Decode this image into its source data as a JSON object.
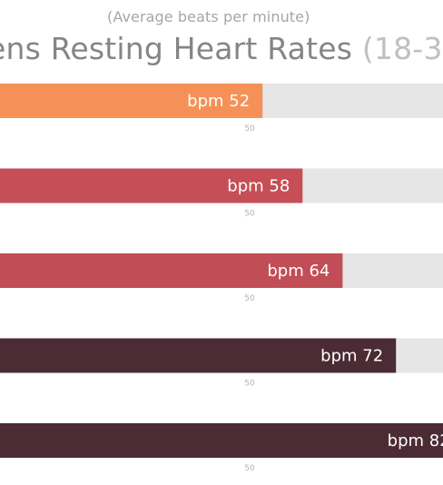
{
  "chart_data": {
    "type": "bar",
    "orientation": "horizontal",
    "subtitle": "(Average beats per minute)",
    "title": "ens Resting Heart Rates",
    "title_range": "(18-3",
    "value_prefix": "bpm",
    "tick_label": "50",
    "categories": [
      "",
      "",
      "",
      "",
      ""
    ],
    "values": [
      52,
      58,
      64,
      72,
      82
    ],
    "colors": [
      "#f59157",
      "#c64e57",
      "#c14d56",
      "#4b2b34",
      "#4b2b34"
    ],
    "track_color": "#e6e6e6",
    "xlim": [
      0,
      82
    ],
    "grid": false
  }
}
